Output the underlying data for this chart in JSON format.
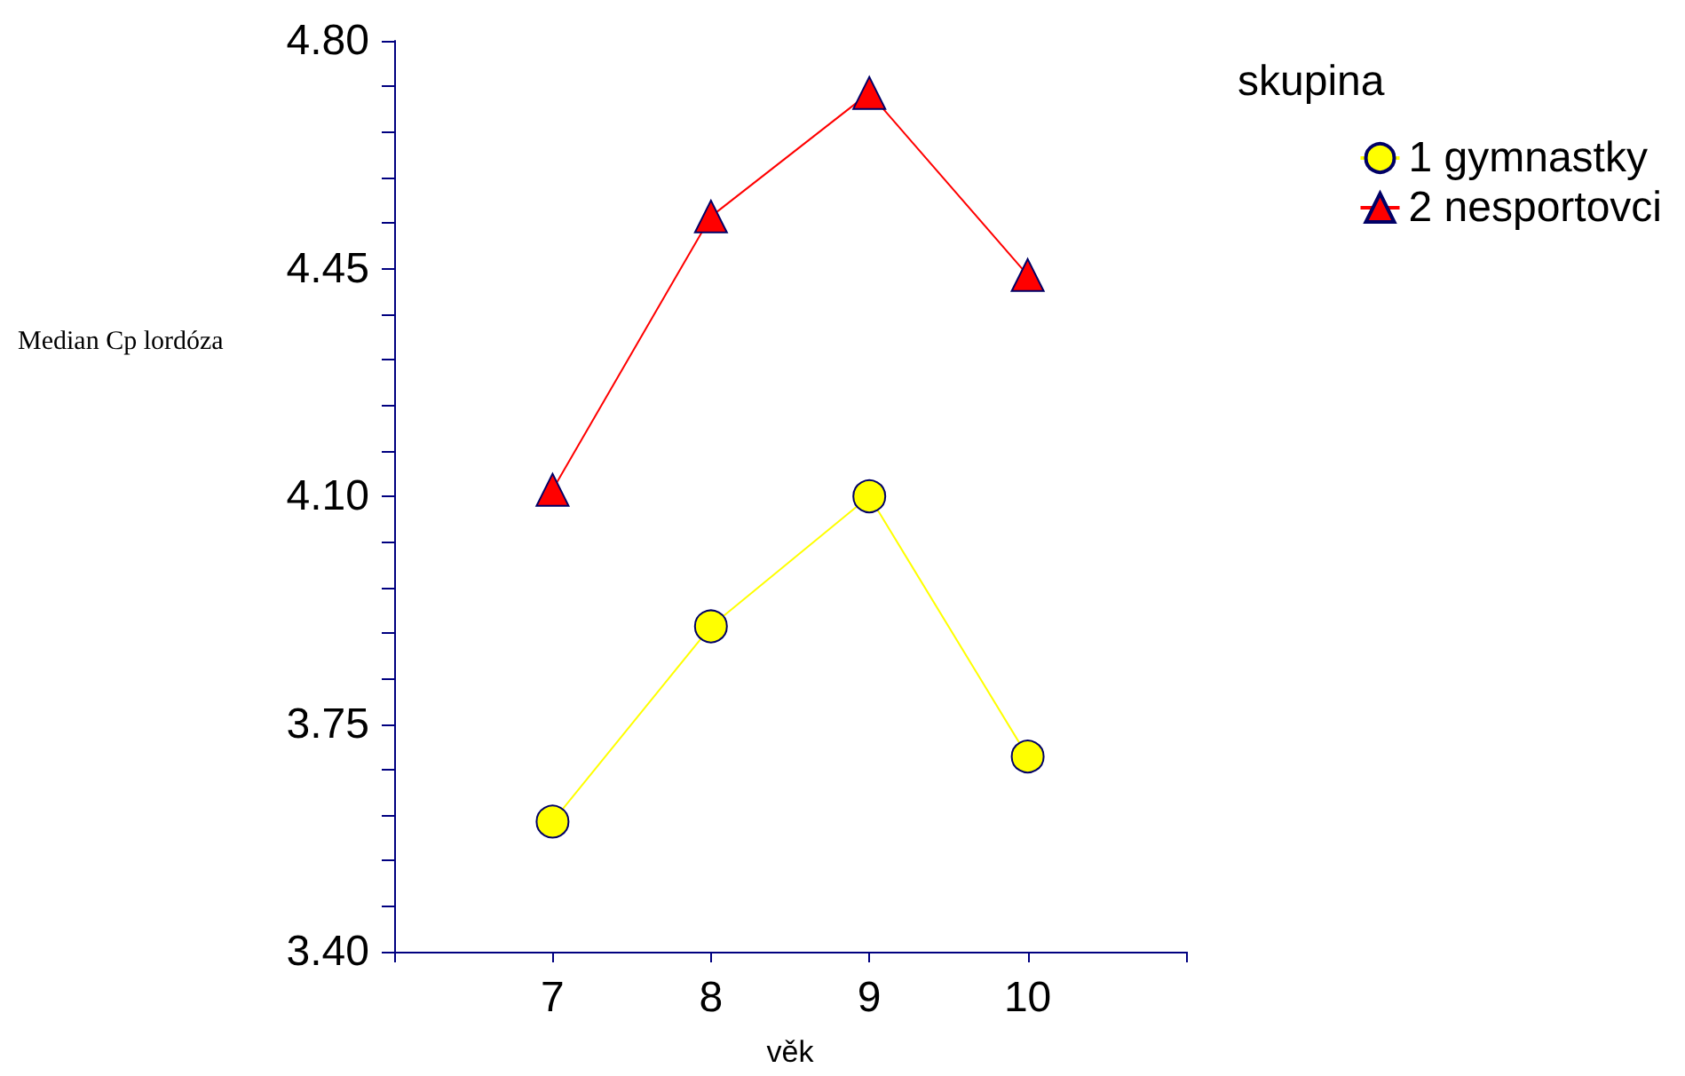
{
  "chart_data": {
    "type": "line",
    "xlabel": "věk",
    "ylabel": "Median Cp lordóza",
    "legend_title": "skupina",
    "legend": "top right",
    "grid": false,
    "x": [
      7,
      8,
      9,
      10
    ],
    "xlim": [
      6,
      11
    ],
    "xticks": [
      {
        "value": 6,
        "label": null
      },
      7,
      8,
      9,
      10,
      {
        "value": 11,
        "label": null
      }
    ],
    "ylim": [
      3.4,
      4.8
    ],
    "yticks": [
      {
        "value": 3.4,
        "label": "3.40"
      },
      {
        "value": 3.47,
        "label": null
      },
      {
        "value": 3.54,
        "label": null
      },
      {
        "value": 3.61,
        "label": null
      },
      {
        "value": 3.68,
        "label": null
      },
      {
        "value": 3.75,
        "label": "3.75"
      },
      {
        "value": 3.82,
        "label": null
      },
      {
        "value": 3.89,
        "label": null
      },
      {
        "value": 3.96,
        "label": null
      },
      {
        "value": 4.03,
        "label": null
      },
      {
        "value": 4.1,
        "label": "4.10"
      },
      {
        "value": 4.17,
        "label": null
      },
      {
        "value": 4.24,
        "label": null
      },
      {
        "value": 4.31,
        "label": null
      },
      {
        "value": 4.38,
        "label": null
      },
      {
        "value": 4.45,
        "label": "4.45"
      },
      {
        "value": 4.52,
        "label": null
      },
      {
        "value": 4.59,
        "label": null
      },
      {
        "value": 4.66,
        "label": null
      },
      {
        "value": 4.73,
        "label": null
      },
      {
        "value": 4.8,
        "label": "4.80"
      }
    ],
    "series": [
      {
        "name": "1 gymnastky",
        "color": "#ffff00",
        "marker": "circle",
        "values": [
          3.6,
          3.9,
          4.1,
          3.7
        ]
      },
      {
        "name": "2 nesportovci",
        "color": "#ff0000",
        "marker": "triangle",
        "values": [
          4.11,
          4.53,
          4.72,
          4.44
        ]
      }
    ]
  }
}
